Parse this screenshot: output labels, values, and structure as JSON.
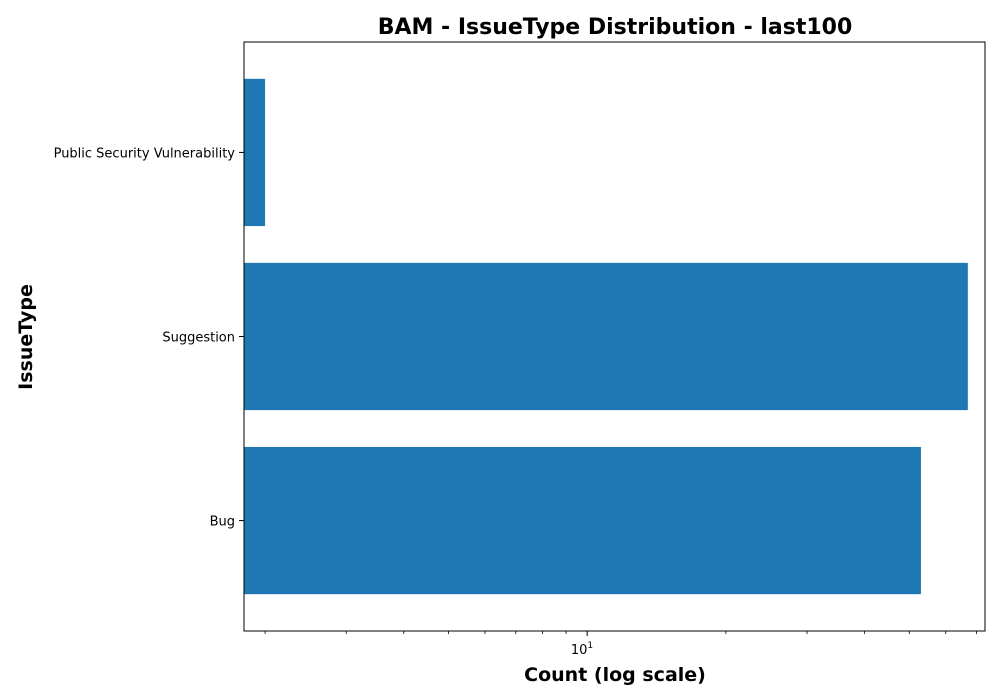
{
  "chart_data": {
    "type": "bar",
    "orientation": "horizontal",
    "title": "BAM - IssueType Distribution - last100",
    "xlabel": "Count (log scale)",
    "ylabel": "IssueType",
    "x_scale": "log",
    "xlim": [
      1.8,
      73
    ],
    "x_tick_base": "10",
    "x_tick_exponent": "1",
    "categories": [
      "Bug",
      "Suggestion",
      "Public Security Vulnerability"
    ],
    "values": [
      53,
      67,
      2
    ],
    "bar_color": "#1f77b4",
    "grid": false,
    "legend": false
  }
}
